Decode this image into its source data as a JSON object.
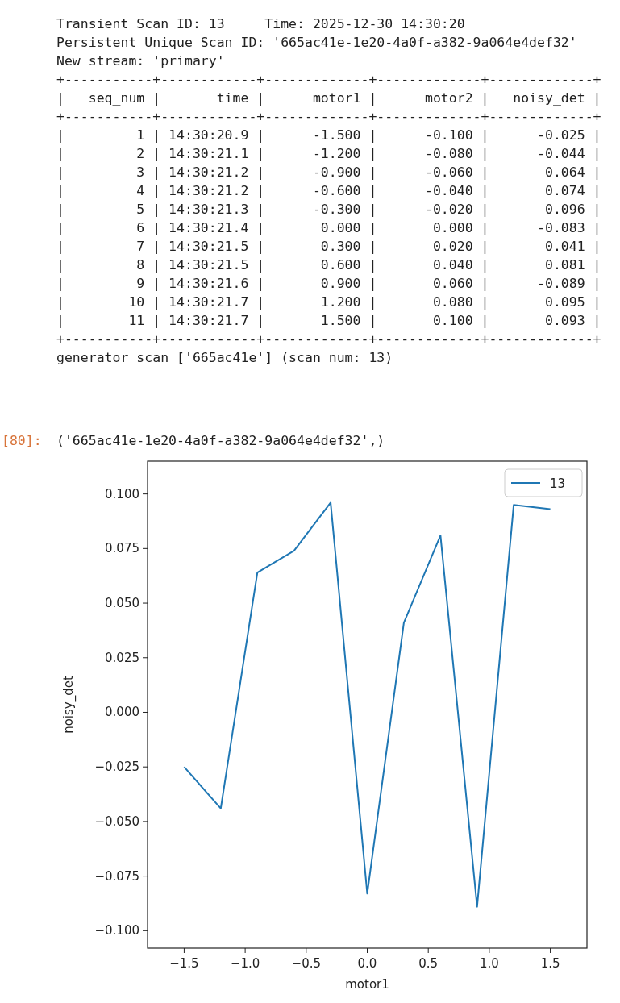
{
  "chart_data": {
    "type": "line",
    "xlabel": "motor1",
    "ylabel": "noisy_det",
    "x": [
      -1.5,
      -1.2,
      -0.9,
      -0.6,
      -0.3,
      0.0,
      0.3,
      0.6,
      0.9,
      1.2,
      1.5
    ],
    "series": [
      {
        "name": "13",
        "color": "#1f77b4",
        "values": [
          -0.025,
          -0.044,
          0.064,
          0.074,
          0.096,
          -0.083,
          0.041,
          0.081,
          -0.089,
          0.095,
          0.093
        ]
      }
    ],
    "xlim": [
      -1.8,
      1.8
    ],
    "ylim": [
      -0.108,
      0.115
    ],
    "xticks": [
      {
        "value": -1.5,
        "label": "−1.5"
      },
      {
        "value": -1.0,
        "label": "−1.0"
      },
      {
        "value": -0.5,
        "label": "−0.5"
      },
      {
        "value": 0,
        "label": "0.0"
      },
      {
        "value": 0.5,
        "label": "0.5"
      },
      {
        "value": 1.0,
        "label": "1.0"
      },
      {
        "value": 1.5,
        "label": "1.5"
      }
    ],
    "yticks": [
      {
        "value": -0.1,
        "label": "−0.100"
      },
      {
        "value": -0.075,
        "label": "−0.075"
      },
      {
        "value": -0.05,
        "label": "−0.050"
      },
      {
        "value": -0.025,
        "label": "−0.025"
      },
      {
        "value": 0,
        "label": "0.000"
      },
      {
        "value": 0.025,
        "label": "0.025"
      },
      {
        "value": 0.05,
        "label": "0.050"
      },
      {
        "value": 0.075,
        "label": "0.075"
      },
      {
        "value": 0.1,
        "label": "0.100"
      }
    ],
    "grid": false,
    "legend": "top right",
    "annotations": [
      "Transient Scan ID: 13     Time: 2025-12-30 14:30:20",
      "Persistent Unique Scan ID: '665ac41e-1e20-4a0f-a382-9a064e4def32'",
      "New stream: 'primary'",
      "+-----------+------------+-------------+-------------+-------------+",
      "|   seq_num |       time |      motor1 |      motor2 |   noisy_det |",
      "+-----------+------------+-------------+-------------+-------------+",
      "|         1 | 14:30:20.9 |      -1.500 |      -0.100 |      -0.025 |",
      "|         2 | 14:30:21.1 |      -1.200 |      -0.080 |      -0.044 |",
      "|         3 | 14:30:21.2 |      -0.900 |      -0.060 |       0.064 |",
      "|         4 | 14:30:21.2 |      -0.600 |      -0.040 |       0.074 |",
      "|         5 | 14:30:21.3 |      -0.300 |      -0.020 |       0.096 |",
      "|         6 | 14:30:21.4 |       0.000 |       0.000 |      -0.083 |",
      "|         7 | 14:30:21.5 |       0.300 |       0.020 |       0.041 |",
      "|         8 | 14:30:21.5 |       0.600 |       0.040 |       0.081 |",
      "|         9 | 14:30:21.6 |       0.900 |       0.060 |      -0.089 |",
      "|        10 | 14:30:21.7 |       1.200 |       0.080 |       0.095 |",
      "|        11 | 14:30:21.7 |       1.500 |       0.100 |       0.093 |",
      "+-----------+------------+-------------+-------------+-------------+",
      "generator scan ['665ac41e'] (scan num: 13)",
      "[80]:",
      "('665ac41e-1e20-4a0f-a382-9a064e4def32',)"
    ]
  }
}
